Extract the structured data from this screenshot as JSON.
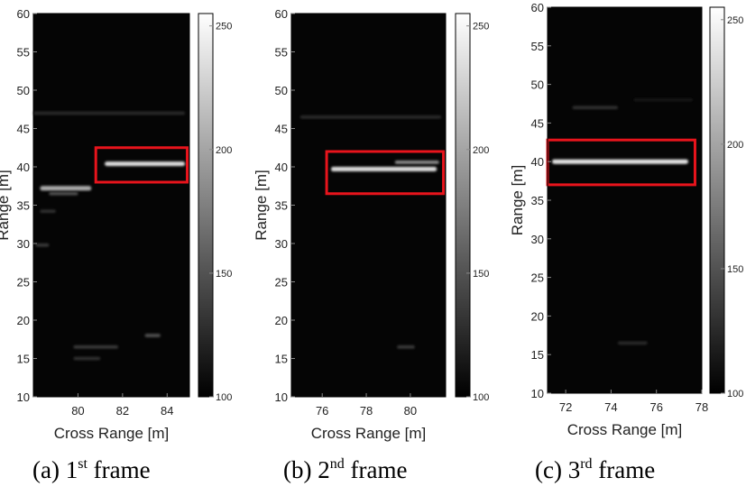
{
  "chart_data": [
    {
      "type": "heatmap",
      "caption": {
        "prefix": "(a)  1",
        "sup": "st",
        "suffix": "  frame"
      },
      "xlabel": "Cross Range [m]",
      "ylabel": "Range [m]",
      "xlim": [
        78,
        85
      ],
      "ylim": [
        10,
        60
      ],
      "xticks": [
        80,
        82,
        84
      ],
      "yticks": [
        10,
        15,
        20,
        25,
        30,
        35,
        40,
        45,
        50,
        55,
        60
      ],
      "colorbar": {
        "range": [
          100,
          255
        ],
        "ticks": [
          100,
          150,
          200,
          250
        ]
      },
      "highlight_box": {
        "x": [
          80.8,
          84.9
        ],
        "y": [
          38,
          42.5
        ],
        "color": "#e8141c"
      },
      "returns": [
        {
          "x": [
            81.2,
            84.8
          ],
          "y": 40.4,
          "value": 235
        },
        {
          "x": [
            78.3,
            80.6
          ],
          "y": 37.2,
          "value": 205
        },
        {
          "x": [
            78.7,
            80.0
          ],
          "y": 36.5,
          "value": 150
        },
        {
          "x": [
            78.3,
            79.0
          ],
          "y": 34.2,
          "value": 130
        },
        {
          "x": [
            78.0,
            84.8
          ],
          "y": 47.0,
          "value": 125
        },
        {
          "x": [
            79.8,
            81.8
          ],
          "y": 16.5,
          "value": 135
        },
        {
          "x": [
            79.8,
            81.0
          ],
          "y": 15.0,
          "value": 130
        },
        {
          "x": [
            83.0,
            83.7
          ],
          "y": 18.0,
          "value": 150
        },
        {
          "x": [
            78.1,
            78.7
          ],
          "y": 29.8,
          "value": 135
        }
      ]
    },
    {
      "type": "heatmap",
      "caption": {
        "prefix": "(b)  2",
        "sup": "nd",
        "suffix": "  frame"
      },
      "xlabel": "Cross Range [m]",
      "ylabel": "Range [m]",
      "xlim": [
        74.6,
        81.6
      ],
      "ylim": [
        10,
        60
      ],
      "xticks": [
        76,
        78,
        80
      ],
      "yticks": [
        10,
        15,
        20,
        25,
        30,
        35,
        40,
        45,
        50,
        55,
        60
      ],
      "colorbar": {
        "range": [
          100,
          255
        ],
        "ticks": [
          100,
          150,
          200,
          250
        ]
      },
      "highlight_box": {
        "x": [
          76.2,
          81.5
        ],
        "y": [
          36.5,
          42
        ],
        "color": "#e8141c"
      },
      "returns": [
        {
          "x": [
            76.4,
            81.2
          ],
          "y": 39.7,
          "value": 235
        },
        {
          "x": [
            79.3,
            81.3
          ],
          "y": 40.6,
          "value": 190
        },
        {
          "x": [
            75.0,
            81.4
          ],
          "y": 46.5,
          "value": 125
        },
        {
          "x": [
            79.4,
            80.2
          ],
          "y": 16.5,
          "value": 135
        }
      ]
    },
    {
      "type": "heatmap",
      "caption": {
        "prefix": "(c)  3",
        "sup": "rd",
        "suffix": "  frame"
      },
      "xlabel": "Cross Range [m]",
      "ylabel": "Range [m]",
      "xlim": [
        71.2,
        78
      ],
      "ylim": [
        10,
        60
      ],
      "xticks": [
        72,
        74,
        76,
        78
      ],
      "yticks": [
        10,
        15,
        20,
        25,
        30,
        35,
        40,
        45,
        50,
        55,
        60
      ],
      "colorbar": {
        "range": [
          100,
          255
        ],
        "ticks": [
          100,
          150,
          200,
          250
        ]
      },
      "highlight_box": {
        "x": [
          71.2,
          77.7
        ],
        "y": [
          37,
          42.8
        ],
        "color": "#e8141c"
      },
      "returns": [
        {
          "x": [
            71.4,
            77.4
          ],
          "y": 40.0,
          "value": 240
        },
        {
          "x": [
            72.3,
            74.3
          ],
          "y": 47.0,
          "value": 130
        },
        {
          "x": [
            75.0,
            77.6
          ],
          "y": 48.0,
          "value": 115
        },
        {
          "x": [
            74.3,
            75.6
          ],
          "y": 16.5,
          "value": 125
        }
      ]
    }
  ]
}
